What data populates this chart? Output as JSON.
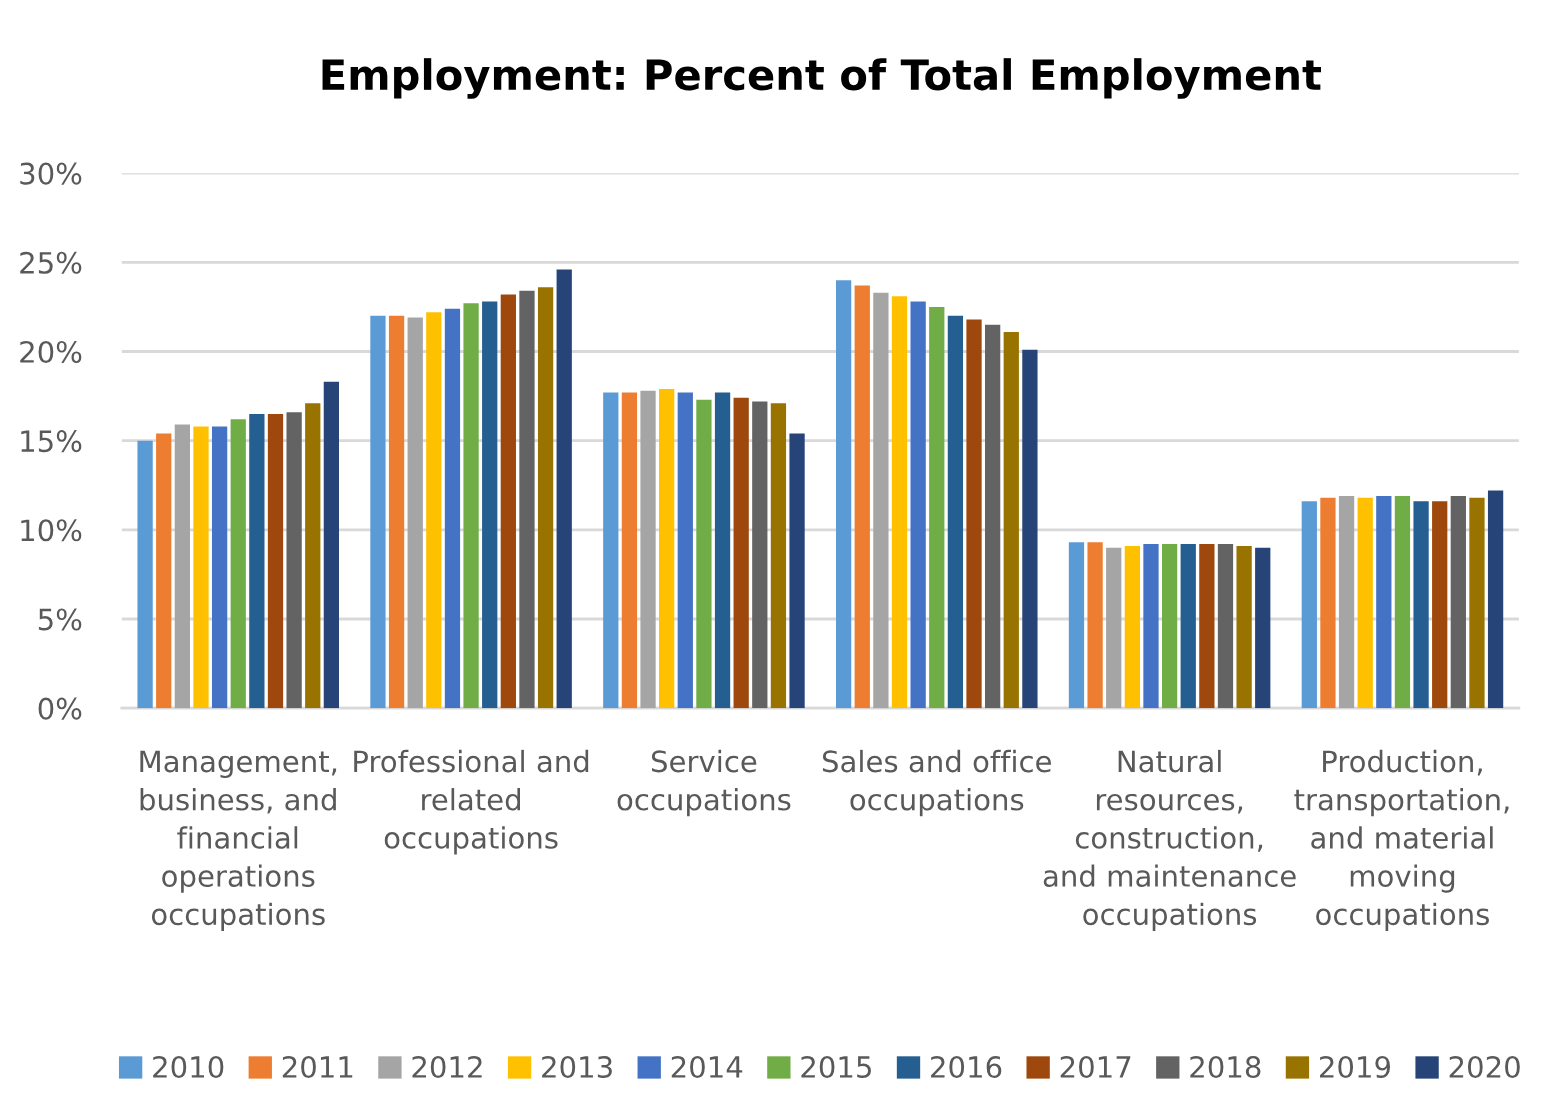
{
  "chart_data": {
    "type": "bar",
    "title": "Employment: Percent of Total Employment",
    "categories": [
      "Management,\nbusiness, and\nfinancial\noperations\noccupations",
      "Professional and\nrelated\noccupations",
      "Service\noccupations",
      "Sales and office\noccupations",
      "Natural\nresources,\nconstruction,\nand maintenance\noccupations",
      "Production,\ntransportation,\nand material\nmoving\noccupations"
    ],
    "series": [
      {
        "name": "2010",
        "color": "#5b9bd5",
        "values": [
          15.0,
          22.0,
          17.7,
          24.0,
          9.3,
          11.6
        ]
      },
      {
        "name": "2011",
        "color": "#ed7d31",
        "values": [
          15.4,
          22.0,
          17.7,
          23.7,
          9.3,
          11.8
        ]
      },
      {
        "name": "2012",
        "color": "#a5a5a5",
        "values": [
          15.9,
          21.9,
          17.8,
          23.3,
          9.0,
          11.9
        ]
      },
      {
        "name": "2013",
        "color": "#ffc000",
        "values": [
          15.8,
          22.2,
          17.9,
          23.1,
          9.1,
          11.8
        ]
      },
      {
        "name": "2014",
        "color": "#4472c4",
        "values": [
          15.8,
          22.4,
          17.7,
          22.8,
          9.2,
          11.9
        ]
      },
      {
        "name": "2015",
        "color": "#70ad47",
        "values": [
          16.2,
          22.7,
          17.3,
          22.5,
          9.2,
          11.9
        ]
      },
      {
        "name": "2016",
        "color": "#255e91",
        "values": [
          16.5,
          22.8,
          17.7,
          22.0,
          9.2,
          11.6
        ]
      },
      {
        "name": "2017",
        "color": "#9e480e",
        "values": [
          16.5,
          23.2,
          17.4,
          21.8,
          9.2,
          11.6
        ]
      },
      {
        "name": "2018",
        "color": "#636363",
        "values": [
          16.6,
          23.4,
          17.2,
          21.5,
          9.2,
          11.9
        ]
      },
      {
        "name": "2019",
        "color": "#997300",
        "values": [
          17.1,
          23.6,
          17.1,
          21.1,
          9.1,
          11.8
        ]
      },
      {
        "name": "2020",
        "color": "#264478",
        "values": [
          18.3,
          24.6,
          15.4,
          20.1,
          9.0,
          12.2
        ]
      }
    ],
    "ylim": [
      0,
      30
    ],
    "yticks": [
      {
        "value": 0,
        "label": "0%"
      },
      {
        "value": 5,
        "label": "5%"
      },
      {
        "value": 10,
        "label": "10%"
      },
      {
        "value": 15,
        "label": "15%"
      },
      {
        "value": 20,
        "label": "20%"
      },
      {
        "value": 25,
        "label": "25%"
      },
      {
        "value": 30,
        "label": "30%"
      }
    ],
    "grid": "y",
    "legend": "bottom"
  }
}
